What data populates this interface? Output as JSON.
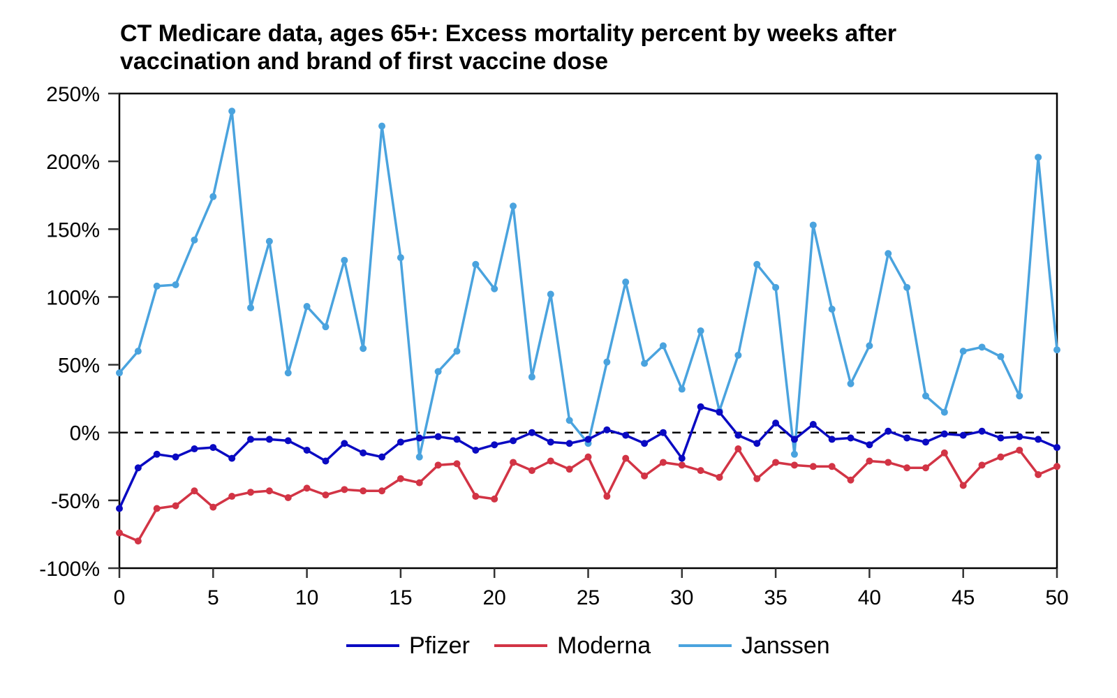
{
  "chart_data": {
    "type": "line",
    "title": "CT Medicare data, ages 65+: Excess mortality percent by weeks after vaccination and brand of first vaccine dose",
    "title_lines": [
      "CT Medicare data, ages 65+: Excess mortality percent by weeks after",
      "vaccination and brand of first vaccine dose"
    ],
    "xlabel": "",
    "ylabel": "",
    "xlim": [
      0,
      50
    ],
    "ylim": [
      -100,
      250
    ],
    "x_ticks": [
      0,
      5,
      10,
      15,
      20,
      25,
      30,
      35,
      40,
      45,
      50
    ],
    "x_tick_labels": [
      "0",
      "5",
      "10",
      "15",
      "20",
      "25",
      "30",
      "35",
      "40",
      "45",
      "50"
    ],
    "y_ticks": [
      -100,
      -50,
      0,
      50,
      100,
      150,
      200,
      250
    ],
    "y_tick_labels": [
      "-100%",
      "-50%",
      "0%",
      "50%",
      "100%",
      "150%",
      "200%",
      "250%"
    ],
    "reference_line": {
      "y": 0,
      "style": "dashed",
      "color": "#000000"
    },
    "grid": false,
    "legend_position": "bottom-center",
    "x": [
      0,
      1,
      2,
      3,
      4,
      5,
      6,
      7,
      8,
      9,
      10,
      11,
      12,
      13,
      14,
      15,
      16,
      17,
      18,
      19,
      20,
      21,
      22,
      23,
      24,
      25,
      26,
      27,
      28,
      29,
      30,
      31,
      32,
      33,
      34,
      35,
      36,
      37,
      38,
      39,
      40,
      41,
      42,
      43,
      44,
      45,
      46,
      47,
      48,
      49,
      50
    ],
    "series": [
      {
        "name": "Pfizer",
        "color": "#0a0ac2",
        "values": [
          -56,
          -26,
          -16,
          -18,
          -12,
          -11,
          -19,
          -5,
          -5,
          -6,
          -13,
          -21,
          -8,
          -15,
          -18,
          -7,
          -4,
          -3,
          -5,
          -13,
          -9,
          -6,
          0,
          -7,
          -8,
          -5,
          2,
          -2,
          -8,
          0,
          -19,
          19,
          15,
          -2,
          -8,
          7,
          -5,
          6,
          -5,
          -4,
          -9,
          1,
          -4,
          -7,
          -1,
          -2,
          1,
          -4,
          -3,
          -5,
          -11
        ]
      },
      {
        "name": "Moderna",
        "color": "#d23445",
        "values": [
          -74,
          -80,
          -56,
          -54,
          -43,
          -55,
          -47,
          -44,
          -43,
          -48,
          -41,
          -46,
          -42,
          -43,
          -43,
          -34,
          -37,
          -24,
          -23,
          -47,
          -49,
          -22,
          -28,
          -21,
          -27,
          -18,
          -47,
          -19,
          -32,
          -22,
          -24,
          -28,
          -33,
          -12,
          -34,
          -22,
          -24,
          -25,
          -25,
          -35,
          -21,
          -22,
          -26,
          -26,
          -15,
          -39,
          -24,
          -18,
          -13,
          -31,
          -25
        ]
      },
      {
        "name": "Janssen",
        "color": "#4aa3de",
        "values": [
          44,
          60,
          108,
          109,
          142,
          174,
          237,
          92,
          141,
          44,
          93,
          78,
          127,
          62,
          226,
          129,
          -18,
          45,
          60,
          124,
          106,
          167,
          41,
          102,
          9,
          -8,
          52,
          111,
          51,
          64,
          32,
          75,
          16,
          57,
          124,
          107,
          -16,
          153,
          91,
          36,
          64,
          132,
          107,
          27,
          15,
          60,
          63,
          56,
          27,
          203,
          61
        ]
      }
    ]
  }
}
